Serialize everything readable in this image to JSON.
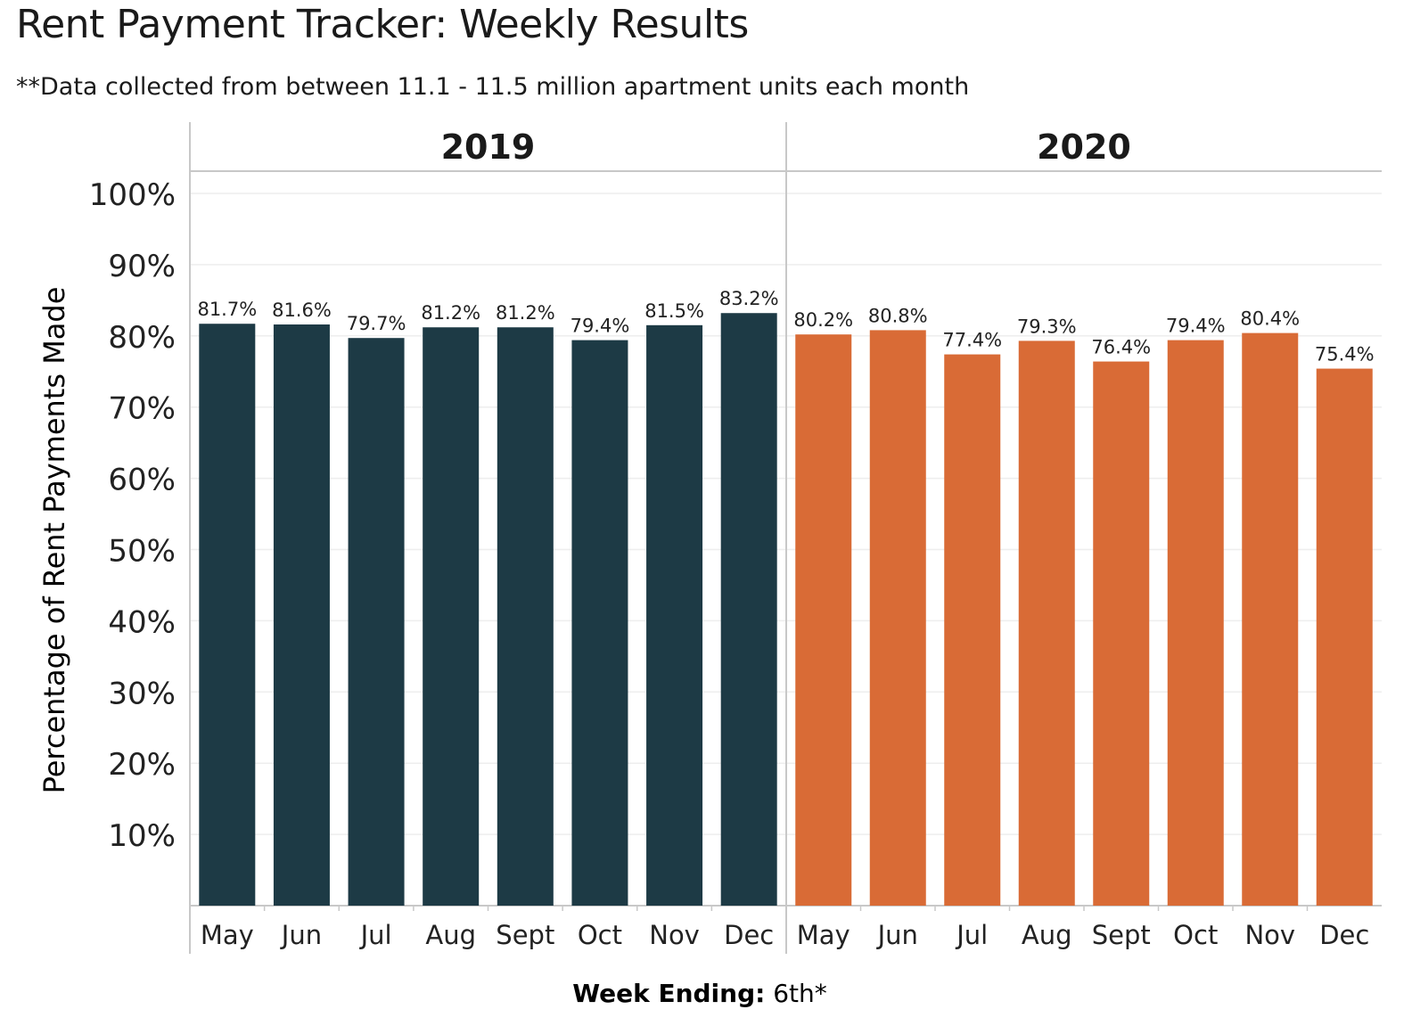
{
  "title": "Rent Payment Tracker: Weekly Results",
  "subtitle": "**Data collected from between 11.1 - 11.5 million apartment units each month",
  "chart_data": {
    "type": "bar",
    "ylabel": "Percentage of Rent Payments Made",
    "xlabel_bold": "Week Ending:",
    "xlabel_rest": " 6th*",
    "ylim": [
      0,
      100
    ],
    "y_ticks": [
      "10%",
      "20%",
      "30%",
      "40%",
      "50%",
      "60%",
      "70%",
      "80%",
      "90%",
      "100%"
    ],
    "categories": [
      "May",
      "Jun",
      "Jul",
      "Aug",
      "Sept",
      "Oct",
      "Nov",
      "Dec"
    ],
    "panels": [
      {
        "name": "2019",
        "color": "#1d3a45",
        "values": [
          81.7,
          81.6,
          79.7,
          81.2,
          81.2,
          79.4,
          81.5,
          83.2
        ],
        "labels": [
          "81.7%",
          "81.6%",
          "79.7%",
          "81.2%",
          "81.2%",
          "79.4%",
          "81.5%",
          "83.2%"
        ]
      },
      {
        "name": "2020",
        "color": "#d96b36",
        "values": [
          80.2,
          80.8,
          77.4,
          79.3,
          76.4,
          79.4,
          80.4,
          75.4
        ],
        "labels": [
          "80.2%",
          "80.8%",
          "77.4%",
          "79.3%",
          "76.4%",
          "79.4%",
          "80.4%",
          "75.4%"
        ]
      }
    ],
    "grid": true,
    "legend": "none"
  }
}
